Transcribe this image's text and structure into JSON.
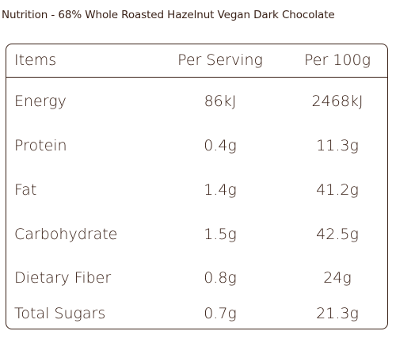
{
  "title": "Nutrition - 68% Whole Roasted Hazelnut Vegan Dark Chocolate",
  "table": {
    "headers": {
      "items": "Items",
      "per_serving": "Per Serving",
      "per_100g": "Per 100g"
    },
    "rows": [
      {
        "name": "Energy",
        "per_serving": "86kJ",
        "per_100g": "2468kJ"
      },
      {
        "name": "Protein",
        "per_serving": "0.4g",
        "per_100g": "11.3g"
      },
      {
        "name": "Fat",
        "per_serving": "1.4g",
        "per_100g": "41.2g"
      },
      {
        "name": "Carbohydrate",
        "per_serving": "1.5g",
        "per_100g": "42.5g"
      },
      {
        "name": "Dietary Fiber",
        "per_serving": "0.8g",
        "per_100g": "24g"
      },
      {
        "name": "Total Sugars",
        "per_serving": "0.7g",
        "per_100g": "21.3g"
      }
    ]
  },
  "colors": {
    "text": "#3a2218",
    "border": "#3a2218",
    "background": "#ffffff"
  }
}
